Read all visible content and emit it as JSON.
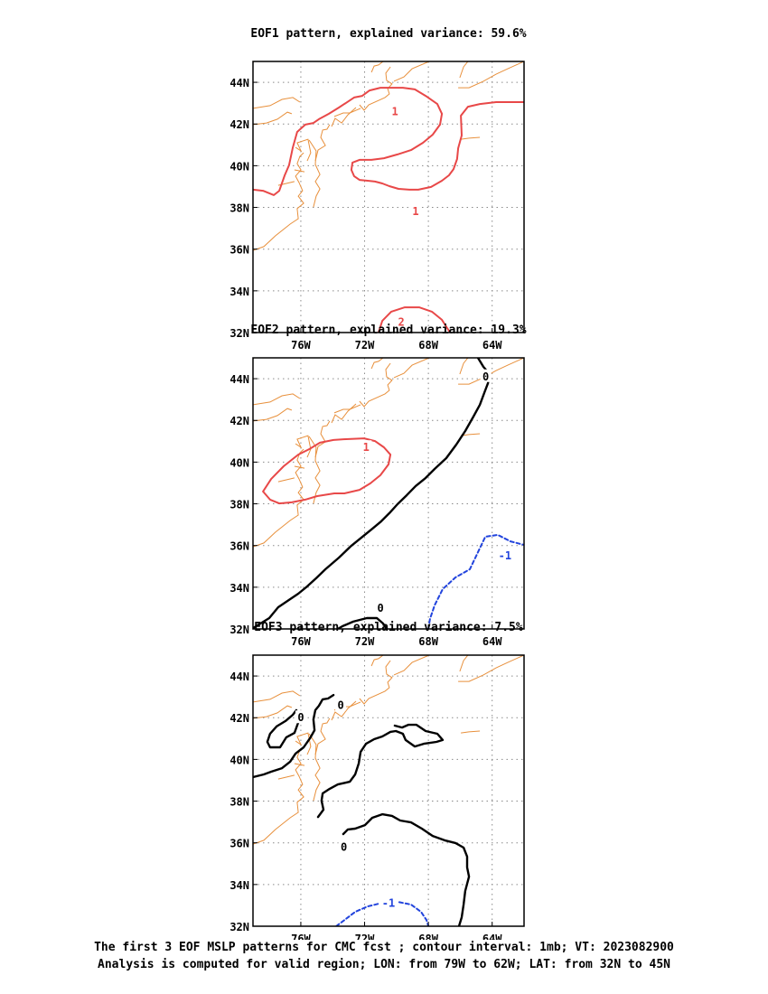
{
  "panels": [
    {
      "title": "EOF1 pattern, explained variance: 59.6%",
      "contour_labels": [
        {
          "text": "1",
          "lon": -70.1,
          "lat": 42.6,
          "color": "red"
        },
        {
          "text": "1",
          "lon": -68.8,
          "lat": 37.8,
          "color": "red"
        },
        {
          "text": "2",
          "lon": -69.7,
          "lat": 32.5,
          "color": "red"
        }
      ]
    },
    {
      "title": "EOF2 pattern, explained variance: 19.3%",
      "contour_labels": [
        {
          "text": "1",
          "lon": -71.9,
          "lat": 40.7,
          "color": "red"
        },
        {
          "text": "0",
          "lon": -64.4,
          "lat": 44.1,
          "color": "black"
        },
        {
          "text": "0",
          "lon": -71.0,
          "lat": 33.0,
          "color": "black"
        },
        {
          "text": "-1",
          "lon": -63.2,
          "lat": 35.5,
          "color": "blue"
        }
      ]
    },
    {
      "title": "EOF3 pattern, explained variance: 7.5%",
      "contour_labels": [
        {
          "text": "0",
          "lon": -76.0,
          "lat": 42.0,
          "color": "black"
        },
        {
          "text": "0",
          "lon": -73.5,
          "lat": 42.6,
          "color": "black"
        },
        {
          "text": "0",
          "lon": -73.3,
          "lat": 35.8,
          "color": "black"
        },
        {
          "text": "-1",
          "lon": -70.5,
          "lat": 33.1,
          "color": "blue"
        }
      ]
    }
  ],
  "x_ticks": [
    "76W",
    "72W",
    "68W",
    "64W"
  ],
  "y_ticks": [
    "32N",
    "34N",
    "36N",
    "38N",
    "40N",
    "42N",
    "44N"
  ],
  "colors": {
    "positive": "#e84848",
    "zero": "#000000",
    "negative": "#2244dd",
    "coast": "#e8903c",
    "grid": "#8a8a8a"
  },
  "caption": {
    "line1": "The first 3 EOF MSLP patterns for CMC fcst ; contour interval: 1mb; VT: 2023082900",
    "line2": "Analysis is computed for valid region; LON: from 79W to 62W; LAT: from 32N to 45N"
  },
  "map_data": {
    "lon_range": [
      -79,
      -62
    ],
    "lat_range": [
      32,
      45
    ],
    "x_tick_lons": [
      -76,
      -72,
      -68,
      -64
    ],
    "y_tick_lats": [
      32,
      34,
      36,
      38,
      40,
      42,
      44
    ],
    "contour_interval_mb": 1
  }
}
